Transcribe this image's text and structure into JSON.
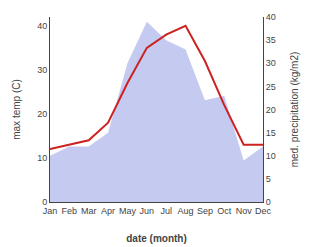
{
  "chart_data": {
    "type": "line",
    "categories": [
      "Jan",
      "Feb",
      "Mar",
      "Apr",
      "May",
      "Jun",
      "Jul",
      "Aug",
      "Sep",
      "Oct",
      "Nov",
      "Dec"
    ],
    "series": [
      {
        "type": "area",
        "color": "#c5caf0",
        "axis": "y2",
        "values": [
          10,
          12,
          12,
          15,
          30,
          39,
          35,
          33,
          22,
          23,
          9,
          12
        ]
      },
      {
        "type": "line",
        "color": "#cc2222",
        "values": [
          12,
          13,
          14,
          18,
          27,
          35,
          38,
          40,
          32,
          22,
          13,
          13
        ]
      }
    ],
    "xlabel": "date (month)",
    "ylabel": "max temp (C)",
    "y2label": "med. precipitation (kg/m2)",
    "ylim": [
      0,
      42
    ],
    "yticks": [
      0,
      10,
      20,
      30,
      40
    ],
    "y2lim": [
      0,
      40
    ],
    "y2ticks": [
      0,
      5,
      10,
      15,
      20,
      25,
      30,
      35,
      40
    ],
    "grid": false
  }
}
